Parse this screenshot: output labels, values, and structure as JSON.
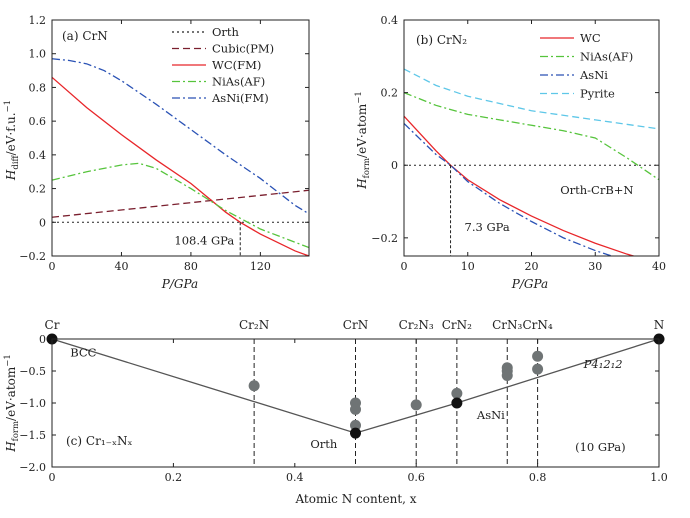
{
  "colors": {
    "wc": "#e8262a",
    "cubic": "#7a1f2e",
    "nias": "#56c43c",
    "asni": "#2a52b5",
    "pyrite": "#5ec7e8",
    "orth": "#222222",
    "gray_pt": "#6f7475",
    "black_pt": "#111111"
  },
  "chart_data": [
    {
      "id": "a",
      "type": "line",
      "panel_label": "(a) CrN",
      "xlabel": "P/GPa",
      "ylabel": "H_diff/eV·f.u.⁻¹",
      "ylabel_main": "H",
      "ylabel_sub": "diff",
      "ylabel_rest": "/eV·f.u.",
      "ylabel_sup": "−1",
      "xlim": [
        0,
        148
      ],
      "ylim": [
        -0.2,
        1.2
      ],
      "xticks": [
        0,
        40,
        80,
        120
      ],
      "xtick_labels": [
        "0",
        "40",
        "80",
        "120"
      ],
      "yticks": [
        -0.2,
        0,
        0.2,
        0.4,
        0.6,
        0.8,
        1.0,
        1.2
      ],
      "ytick_labels": [
        "−0.2",
        "0",
        "0.2",
        "0.4",
        "0.6",
        "0.8",
        "1.0",
        "1.2"
      ],
      "legend_position": "top-right",
      "series": [
        {
          "name": "Orth",
          "color_key": "orth",
          "dash": "2,3",
          "x": [
            0,
            148
          ],
          "y": [
            0,
            0
          ]
        },
        {
          "name": "Cubic(PM)",
          "color_key": "cubic",
          "dash": "7,4",
          "x": [
            0,
            148
          ],
          "y": [
            0.03,
            0.19
          ]
        },
        {
          "name": "WC(FM)",
          "color_key": "wc",
          "dash": "",
          "x": [
            0,
            20,
            40,
            60,
            80,
            100,
            108.4,
            120,
            140,
            148
          ],
          "y": [
            0.86,
            0.68,
            0.52,
            0.37,
            0.23,
            0.06,
            0,
            -0.07,
            -0.17,
            -0.2
          ]
        },
        {
          "name": "NiAs(AF)",
          "color_key": "nias",
          "dash": "8,3,2,3",
          "x": [
            0,
            20,
            40,
            50,
            60,
            80,
            100,
            120,
            148
          ],
          "y": [
            0.25,
            0.3,
            0.34,
            0.35,
            0.32,
            0.2,
            0.07,
            -0.04,
            -0.15
          ]
        },
        {
          "name": "AsNi(FM)",
          "color_key": "asni",
          "dash": "8,3,2,3",
          "x": [
            0,
            10,
            20,
            30,
            40,
            60,
            80,
            100,
            120,
            140,
            148
          ],
          "y": [
            0.97,
            0.96,
            0.94,
            0.9,
            0.84,
            0.7,
            0.55,
            0.4,
            0.26,
            0.1,
            0.05
          ]
        }
      ],
      "annotations": [
        {
          "text": "108.4 GPa",
          "x": 108.4,
          "y": 0
        }
      ]
    },
    {
      "id": "b",
      "type": "line",
      "panel_label": "(b) CrN₂",
      "xlabel": "P/GPa",
      "ylabel": "H_form/eV·atom⁻¹",
      "ylabel_main": "H",
      "ylabel_sub": "form",
      "ylabel_rest": "/eV·atom",
      "ylabel_sup": "−1",
      "xlim": [
        0,
        40
      ],
      "ylim": [
        -0.25,
        0.4
      ],
      "xticks": [
        0,
        10,
        20,
        30,
        40
      ],
      "xtick_labels": [
        "0",
        "10",
        "20",
        "30",
        "40"
      ],
      "yticks": [
        -0.2,
        0,
        0.2,
        0.4
      ],
      "ytick_labels": [
        "−0.2",
        "0",
        "0.2",
        "0.4"
      ],
      "legend_position": "top-right",
      "series": [
        {
          "name": "WC",
          "color_key": "wc",
          "dash": "",
          "x": [
            0,
            5,
            7.3,
            10,
            15,
            20,
            25,
            30,
            35,
            40
          ],
          "y": [
            0.135,
            0.04,
            0,
            -0.04,
            -0.095,
            -0.14,
            -0.18,
            -0.215,
            -0.245,
            -0.27
          ]
        },
        {
          "name": "NiAs(AF)",
          "color_key": "nias",
          "dash": "8,3,2,3",
          "x": [
            0,
            5,
            10,
            15,
            20,
            25,
            30,
            35,
            40
          ],
          "y": [
            0.2,
            0.165,
            0.14,
            0.125,
            0.11,
            0.095,
            0.075,
            0.02,
            -0.04
          ]
        },
        {
          "name": "AsNi",
          "color_key": "asni",
          "dash": "8,3,2,3",
          "x": [
            0,
            5,
            7.3,
            10,
            15,
            20,
            25,
            30,
            36
          ],
          "y": [
            0.115,
            0.03,
            0,
            -0.045,
            -0.105,
            -0.155,
            -0.2,
            -0.235,
            -0.27
          ]
        },
        {
          "name": "Pyrite",
          "color_key": "pyrite",
          "dash": "7,4",
          "x": [
            0,
            5,
            10,
            20,
            30,
            40
          ],
          "y": [
            0.265,
            0.22,
            0.19,
            0.15,
            0.125,
            0.1
          ]
        },
        {
          "name": "Orth-CrB+N",
          "color_key": "orth",
          "dash": "2,3",
          "x": [
            0,
            40
          ],
          "y": [
            0,
            0
          ]
        }
      ],
      "annotations": [
        {
          "text": "7.3 GPa",
          "x": 7.3,
          "y": 0
        },
        {
          "text": "Orth-CrB+N",
          "x": 36,
          "y": -0.04
        }
      ]
    },
    {
      "id": "c",
      "type": "scatter",
      "panel_label": "(c) Cr₁₋ₓNₓ",
      "xlabel": "Atomic N content, x",
      "ylabel": "H_form/eV·atom⁻¹",
      "ylabel_main": "H",
      "ylabel_sub": "form",
      "ylabel_rest": "/eV·atom",
      "ylabel_sup": "−1",
      "xlim": [
        0,
        1.0
      ],
      "ylim": [
        -2.0,
        0
      ],
      "xticks": [
        0,
        0.2,
        0.4,
        0.6,
        0.8,
        1.0
      ],
      "xtick_labels": [
        "0",
        "0.2",
        "0.4",
        "0.6",
        "0.8",
        "1.0"
      ],
      "yticks": [
        -2.0,
        -1.5,
        -1.0,
        -0.5,
        0
      ],
      "ytick_labels": [
        "−2.0",
        "−1.5",
        "−1.0",
        "−0.5",
        "0"
      ],
      "hull": {
        "x": [
          0,
          0.5,
          0.667,
          1.0
        ],
        "y": [
          0,
          -1.47,
          -1.0,
          0
        ]
      },
      "compositions": [
        {
          "label": "Cr",
          "x": 0
        },
        {
          "label": "Cr₂N",
          "x": 0.333
        },
        {
          "label": "CrN",
          "x": 0.5
        },
        {
          "label": "Cr₂N₃",
          "x": 0.6
        },
        {
          "label": "CrN₂",
          "x": 0.667
        },
        {
          "label": "CrN₃",
          "x": 0.75
        },
        {
          "label": "CrN₄",
          "x": 0.8
        },
        {
          "label": "N",
          "x": 1.0
        }
      ],
      "vlines": [
        0.333,
        0.5,
        0.6,
        0.667,
        0.75,
        0.8
      ],
      "points_gray": [
        {
          "x": 0.333,
          "y": -0.73
        },
        {
          "x": 0.5,
          "y": -1.0
        },
        {
          "x": 0.5,
          "y": -1.1
        },
        {
          "x": 0.5,
          "y": -1.35
        },
        {
          "x": 0.6,
          "y": -1.03
        },
        {
          "x": 0.667,
          "y": -0.85
        },
        {
          "x": 0.75,
          "y": -0.45
        },
        {
          "x": 0.75,
          "y": -0.5
        },
        {
          "x": 0.75,
          "y": -0.57
        },
        {
          "x": 0.8,
          "y": -0.27
        },
        {
          "x": 0.8,
          "y": -0.47
        }
      ],
      "points_black": [
        {
          "x": 0,
          "y": 0
        },
        {
          "x": 0.5,
          "y": -1.47
        },
        {
          "x": 0.667,
          "y": -1.0
        },
        {
          "x": 1.0,
          "y": 0
        }
      ],
      "annotations": [
        {
          "text": "BCC",
          "x": 0.03,
          "y": -0.27
        },
        {
          "text": "Orth",
          "x": 0.47,
          "y": -1.7
        },
        {
          "text": "AsNi",
          "x": 0.7,
          "y": -1.25
        },
        {
          "text": "P4₁2₁2",
          "x": 0.94,
          "y": -0.45
        },
        {
          "text": "(10 GPa)",
          "x": 0.945,
          "y": -1.75
        }
      ]
    }
  ]
}
